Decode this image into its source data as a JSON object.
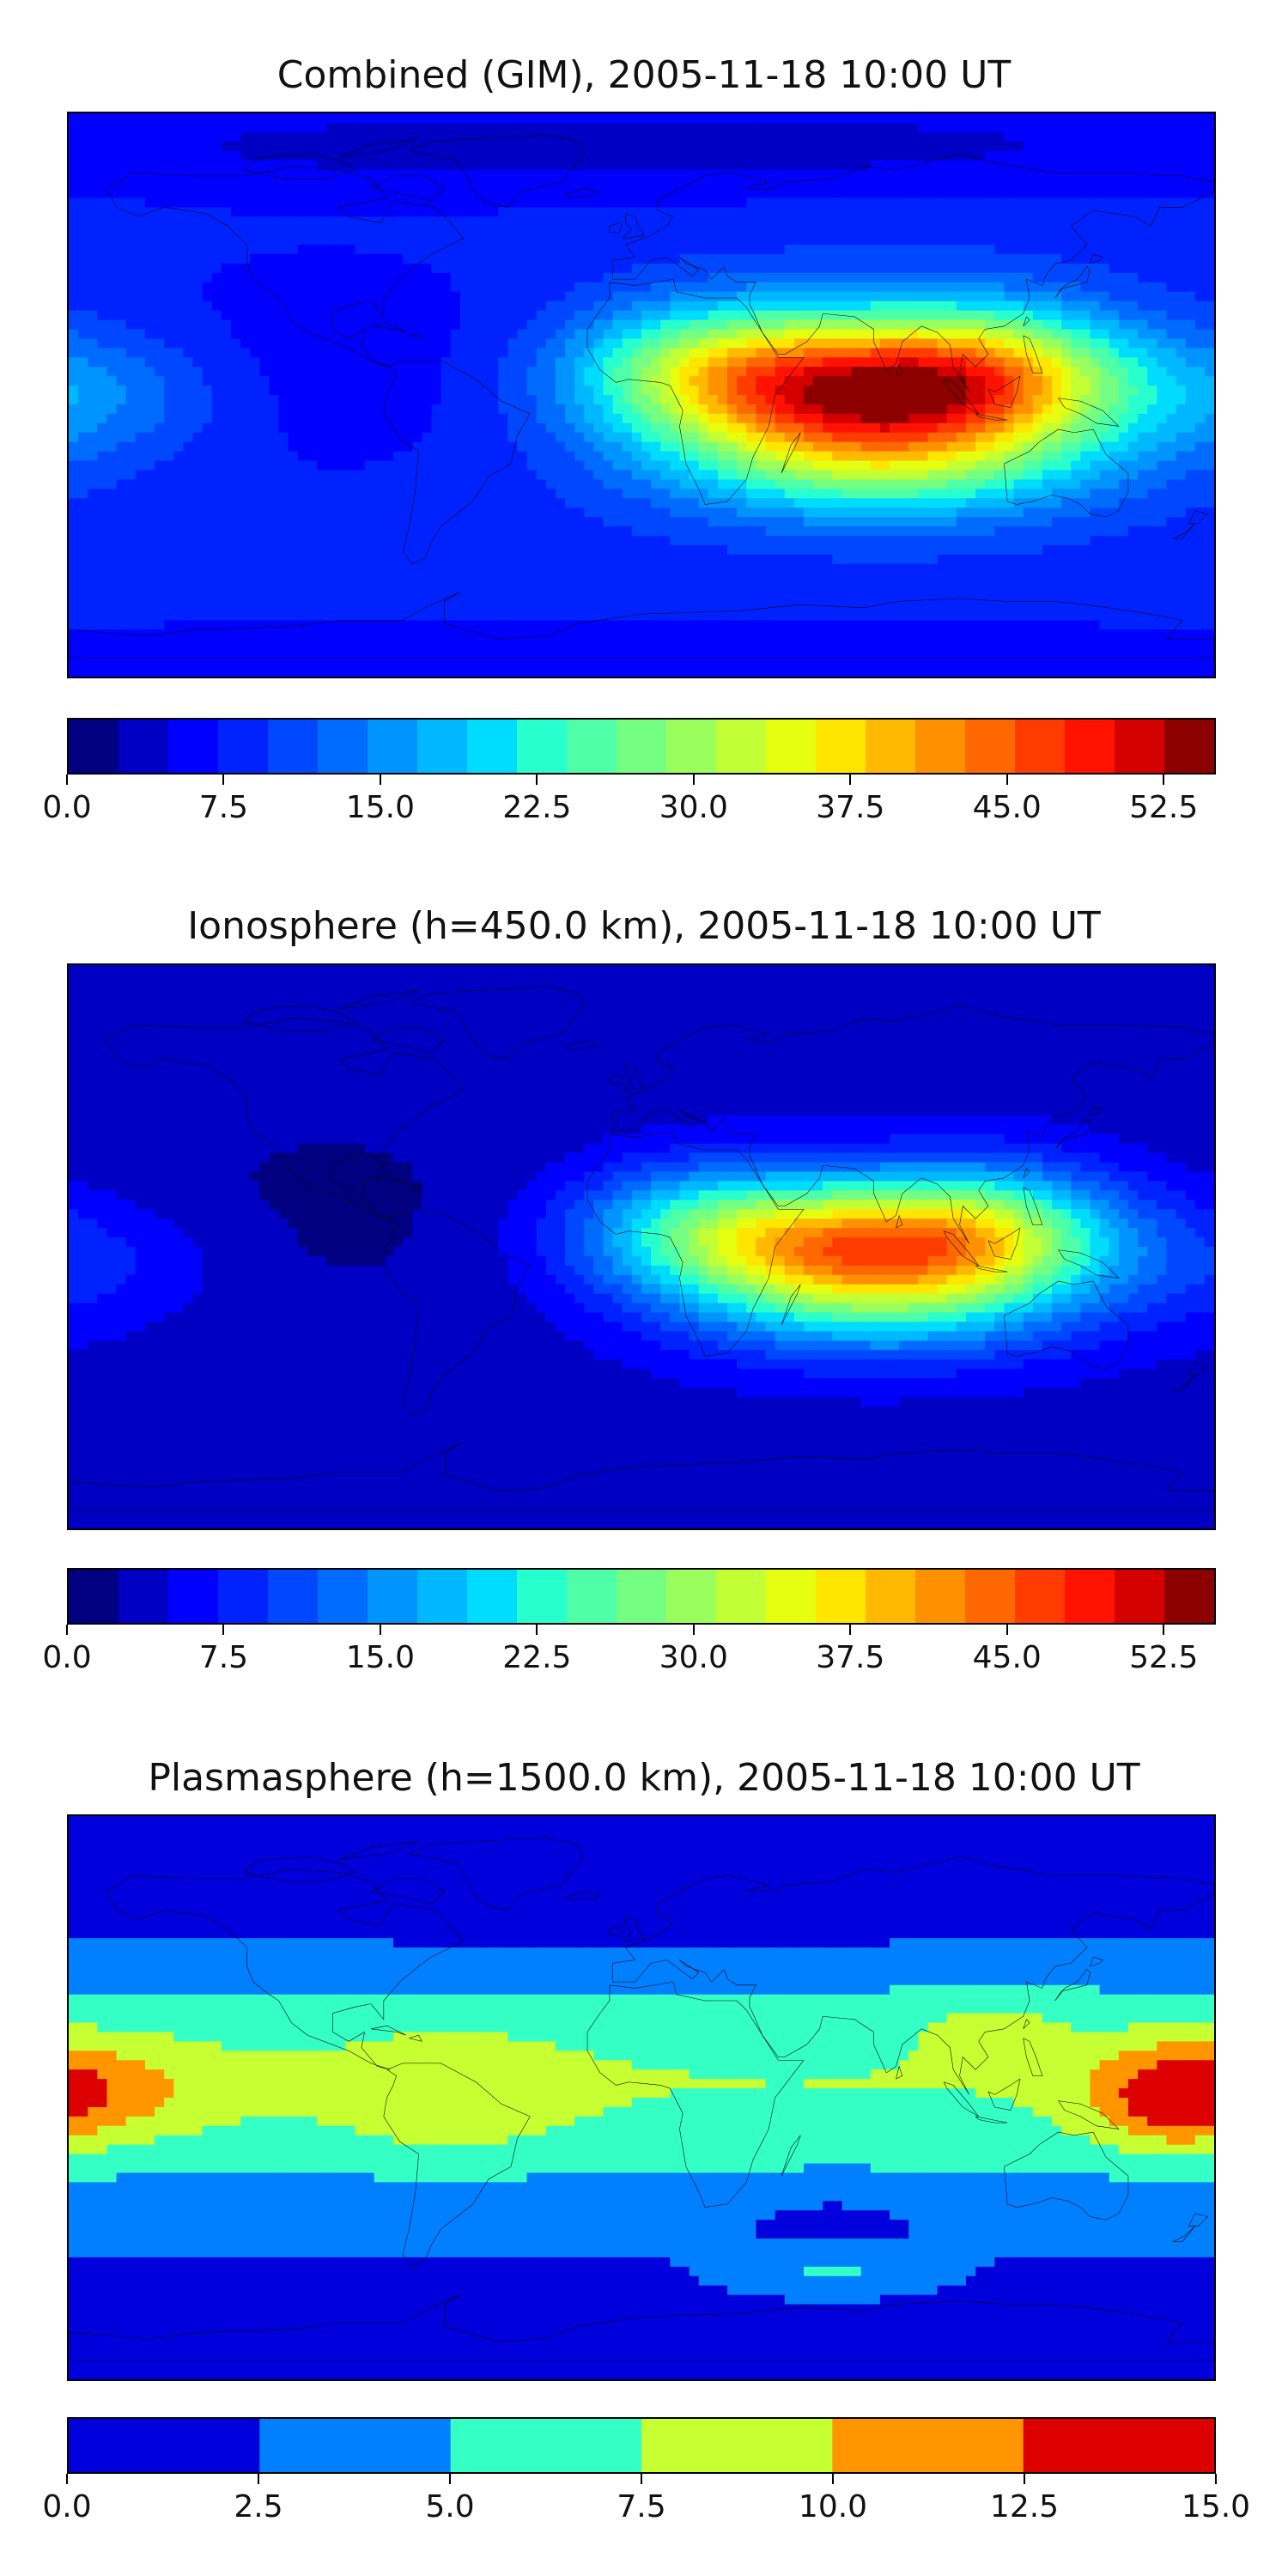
{
  "chart_data": [
    {
      "type": "heatmap",
      "title": "Combined (GIM), 2005-11-18 10:00 UT",
      "xlabel": "",
      "ylabel": "",
      "colorbar": {
        "levels": [
          0.0,
          2.5,
          5.0,
          7.5,
          10.0,
          12.5,
          15.0,
          17.5,
          20.0,
          22.5,
          25.0,
          27.5,
          30.0,
          32.5,
          35.0,
          37.5,
          40.0,
          42.5,
          45.0,
          47.5,
          50.0,
          52.5,
          55.0
        ],
        "colors": [
          "#000080",
          "#0000c4",
          "#0000ff",
          "#0022ff",
          "#0048ff",
          "#006cff",
          "#0094ff",
          "#00b8ff",
          "#00dcfe",
          "#28ffce",
          "#4effa8",
          "#74ff82",
          "#9aff5c",
          "#c2ff34",
          "#e6ff10",
          "#ffe600",
          "#ffb900",
          "#ff9100",
          "#ff6800",
          "#ff3c00",
          "#ff1300",
          "#d40000",
          "#8c0000"
        ],
        "tick_values": [
          0.0,
          7.5,
          15.0,
          22.5,
          30.0,
          37.5,
          45.0,
          52.5
        ],
        "tick_labels": [
          "0.0",
          "7.5",
          "15.0",
          "22.5",
          "30.0",
          "37.5",
          "45.0",
          "52.5"
        ],
        "range": [
          0.0,
          55.0
        ]
      },
      "field": {
        "base": 9,
        "features": [
          {
            "kind": "crest",
            "lon": 75,
            "lat": 0,
            "amp": 44,
            "slon": 48,
            "slat": 17
          },
          {
            "kind": "crest",
            "lon": 20,
            "lat": 10,
            "amp": 12,
            "slon": 30,
            "slat": 14
          },
          {
            "kind": "crest",
            "lon": 110,
            "lat": 10,
            "amp": 10,
            "slon": 28,
            "slat": 14
          },
          {
            "kind": "crest",
            "lon": 75,
            "lat": -25,
            "amp": 10,
            "slon": 45,
            "slat": 12
          },
          {
            "kind": "crest",
            "lon": -170,
            "lat": 0,
            "amp": 6,
            "slon": 30,
            "slat": 15
          },
          {
            "kind": "low",
            "lon": -100,
            "lat": 10,
            "amp": -3,
            "slon": 60,
            "slat": 30
          },
          {
            "kind": "low",
            "lon": 0,
            "lat": 80,
            "amp": -5,
            "slon": 180,
            "slat": 12
          },
          {
            "kind": "low",
            "lon": 0,
            "lat": -85,
            "amp": -4,
            "slon": 180,
            "slat": 10
          }
        ]
      }
    },
    {
      "type": "heatmap",
      "title": "Ionosphere  (h=450.0 km), 2005-11-18 10:00 UT",
      "xlabel": "",
      "ylabel": "",
      "colorbar": {
        "levels": [
          0.0,
          2.5,
          5.0,
          7.5,
          10.0,
          12.5,
          15.0,
          17.5,
          20.0,
          22.5,
          25.0,
          27.5,
          30.0,
          32.5,
          35.0,
          37.5,
          40.0,
          42.5,
          45.0,
          47.5,
          50.0,
          52.5,
          55.0
        ],
        "colors": [
          "#000080",
          "#0000c4",
          "#0000ff",
          "#0022ff",
          "#0048ff",
          "#006cff",
          "#0094ff",
          "#00b8ff",
          "#00dcfe",
          "#28ffce",
          "#4effa8",
          "#74ff82",
          "#9aff5c",
          "#c2ff34",
          "#e6ff10",
          "#ffe600",
          "#ffb900",
          "#ff9100",
          "#ff6800",
          "#ff3c00",
          "#ff1300",
          "#d40000",
          "#8c0000"
        ],
        "tick_values": [
          0.0,
          7.5,
          15.0,
          22.5,
          30.0,
          37.5,
          45.0,
          52.5
        ],
        "tick_labels": [
          "0.0",
          "7.5",
          "15.0",
          "22.5",
          "30.0",
          "37.5",
          "45.0",
          "52.5"
        ],
        "range": [
          0.0,
          55.0
        ]
      },
      "field": {
        "base": 4,
        "features": [
          {
            "kind": "crest",
            "lon": 75,
            "lat": -2,
            "amp": 40,
            "slon": 45,
            "slat": 15
          },
          {
            "kind": "crest",
            "lon": 20,
            "lat": 8,
            "amp": 12,
            "slon": 30,
            "slat": 14
          },
          {
            "kind": "crest",
            "lon": 110,
            "lat": 10,
            "amp": 10,
            "slon": 28,
            "slat": 14
          },
          {
            "kind": "crest",
            "lon": 75,
            "lat": -25,
            "amp": 6,
            "slon": 45,
            "slat": 12
          },
          {
            "kind": "crest",
            "lon": -170,
            "lat": -5,
            "amp": 4,
            "slon": 30,
            "slat": 15
          },
          {
            "kind": "low",
            "lon": -100,
            "lat": 10,
            "amp": -2,
            "slon": 60,
            "slat": 30
          }
        ]
      }
    },
    {
      "type": "heatmap",
      "title": "Plasmasphere (h=1500.0 km), 2005-11-18 10:00 UT",
      "xlabel": "",
      "ylabel": "",
      "colorbar": {
        "levels": [
          0.0,
          2.5,
          5.0,
          7.5,
          10.0,
          12.5,
          15.0
        ],
        "colors": [
          "#0000dd",
          "#0080ff",
          "#34ffc4",
          "#c6ff32",
          "#ff9600",
          "#dd0000"
        ],
        "tick_values": [
          0.0,
          2.5,
          5.0,
          7.5,
          10.0,
          12.5,
          15.0
        ],
        "tick_labels": [
          "0.0",
          "2.5",
          "5.0",
          "7.5",
          "10.0",
          "12.5",
          "15.0"
        ],
        "range": [
          0.0,
          15.0
        ]
      },
      "field": {
        "base": 2,
        "features": [
          {
            "kind": "band",
            "lon": 0,
            "lat": 5,
            "amp": 5.5,
            "slon": 0,
            "slat": 25
          },
          {
            "kind": "crest",
            "lon": -170,
            "lat": 2,
            "amp": 3.5,
            "slon": 25,
            "slat": 12
          },
          {
            "kind": "crest",
            "lon": -60,
            "lat": 0,
            "amp": 2.5,
            "slon": 25,
            "slat": 15
          },
          {
            "kind": "crest",
            "lon": 165,
            "lat": 0,
            "amp": 5.5,
            "slon": 18,
            "slat": 12
          },
          {
            "kind": "crest",
            "lon": 110,
            "lat": 25,
            "amp": 2,
            "slon": 20,
            "slat": 8
          },
          {
            "kind": "crest",
            "lon": 60,
            "lat": -55,
            "amp": 3,
            "slon": 20,
            "slat": 5
          },
          {
            "kind": "low",
            "lon": 0,
            "lat": 70,
            "amp": -3,
            "slon": 180,
            "slat": 12
          },
          {
            "kind": "low",
            "lon": 60,
            "lat": -40,
            "amp": -2,
            "slon": 15,
            "slat": 5
          }
        ]
      }
    }
  ]
}
